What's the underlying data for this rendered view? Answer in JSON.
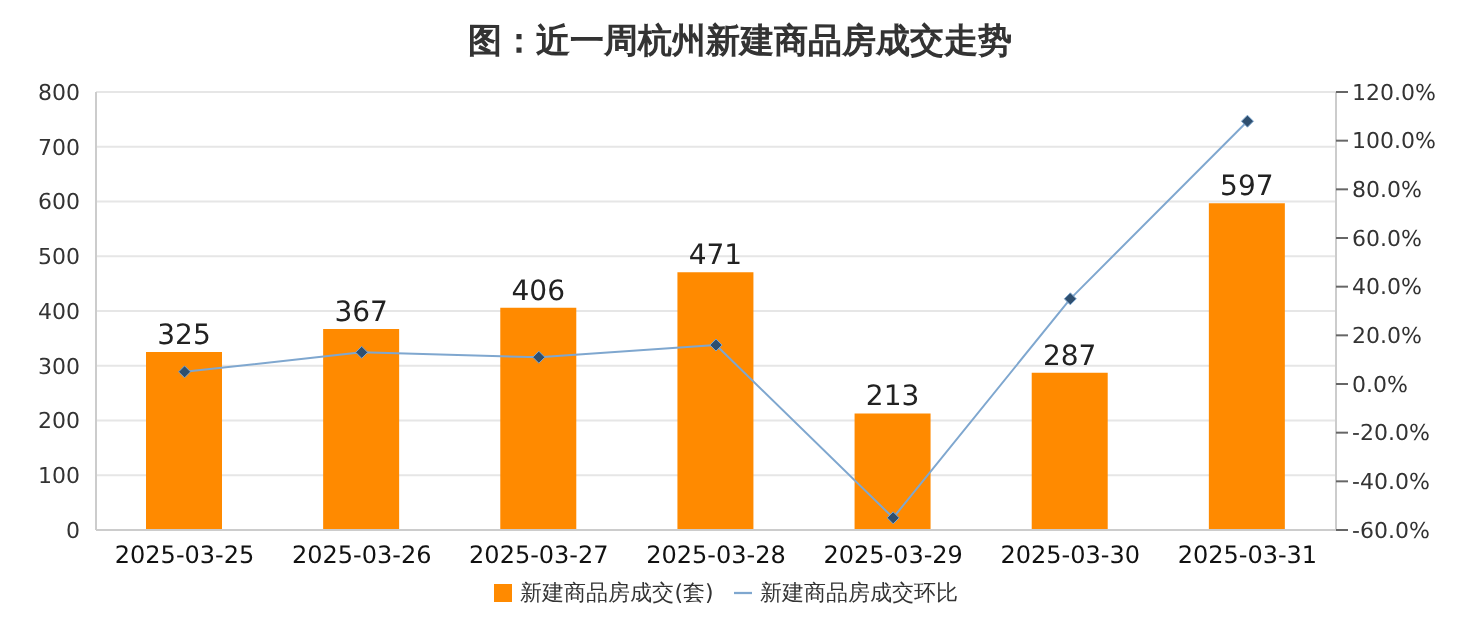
{
  "chart_data": {
    "type": "bar",
    "title": "图：近一周杭州新建商品房成交走势",
    "categories": [
      "2025-03-25",
      "2025-03-26",
      "2025-03-27",
      "2025-03-28",
      "2025-03-29",
      "2025-03-30",
      "2025-03-31"
    ],
    "series": [
      {
        "name": "新建商品房成交(套)",
        "color": "#ff8a00",
        "values": [
          325,
          367,
          406,
          471,
          213,
          287,
          597
        ],
        "value_labels": [
          "325",
          "367",
          "406",
          "471",
          "213",
          "287",
          "597"
        ]
      },
      {
        "name": "新建商品房成交环比",
        "type": "line",
        "axis": "y2",
        "color": "#7fa7cf",
        "marker": "diamond",
        "values": [
          5,
          13,
          11,
          16,
          -55,
          35,
          108
        ]
      }
    ],
    "ylim": [
      0,
      800
    ],
    "yticks": [
      0,
      100,
      200,
      300,
      400,
      500,
      600,
      700,
      800
    ],
    "y2lim": [
      -60,
      120
    ],
    "y2ticks": [
      {
        "value": -60,
        "label": "-60.0%"
      },
      {
        "value": -40,
        "label": "-40.0%"
      },
      {
        "value": -20,
        "label": "-20.0%"
      },
      {
        "value": 0,
        "label": "0.0%"
      },
      {
        "value": 20,
        "label": "20.0%"
      },
      {
        "value": 40,
        "label": "40.0%"
      },
      {
        "value": 60,
        "label": "60.0%"
      },
      {
        "value": 80,
        "label": "80.0%"
      },
      {
        "value": 100,
        "label": "100.0%"
      },
      {
        "value": 120,
        "label": "120.0%"
      }
    ],
    "grid": "y",
    "legend": "bottom"
  }
}
